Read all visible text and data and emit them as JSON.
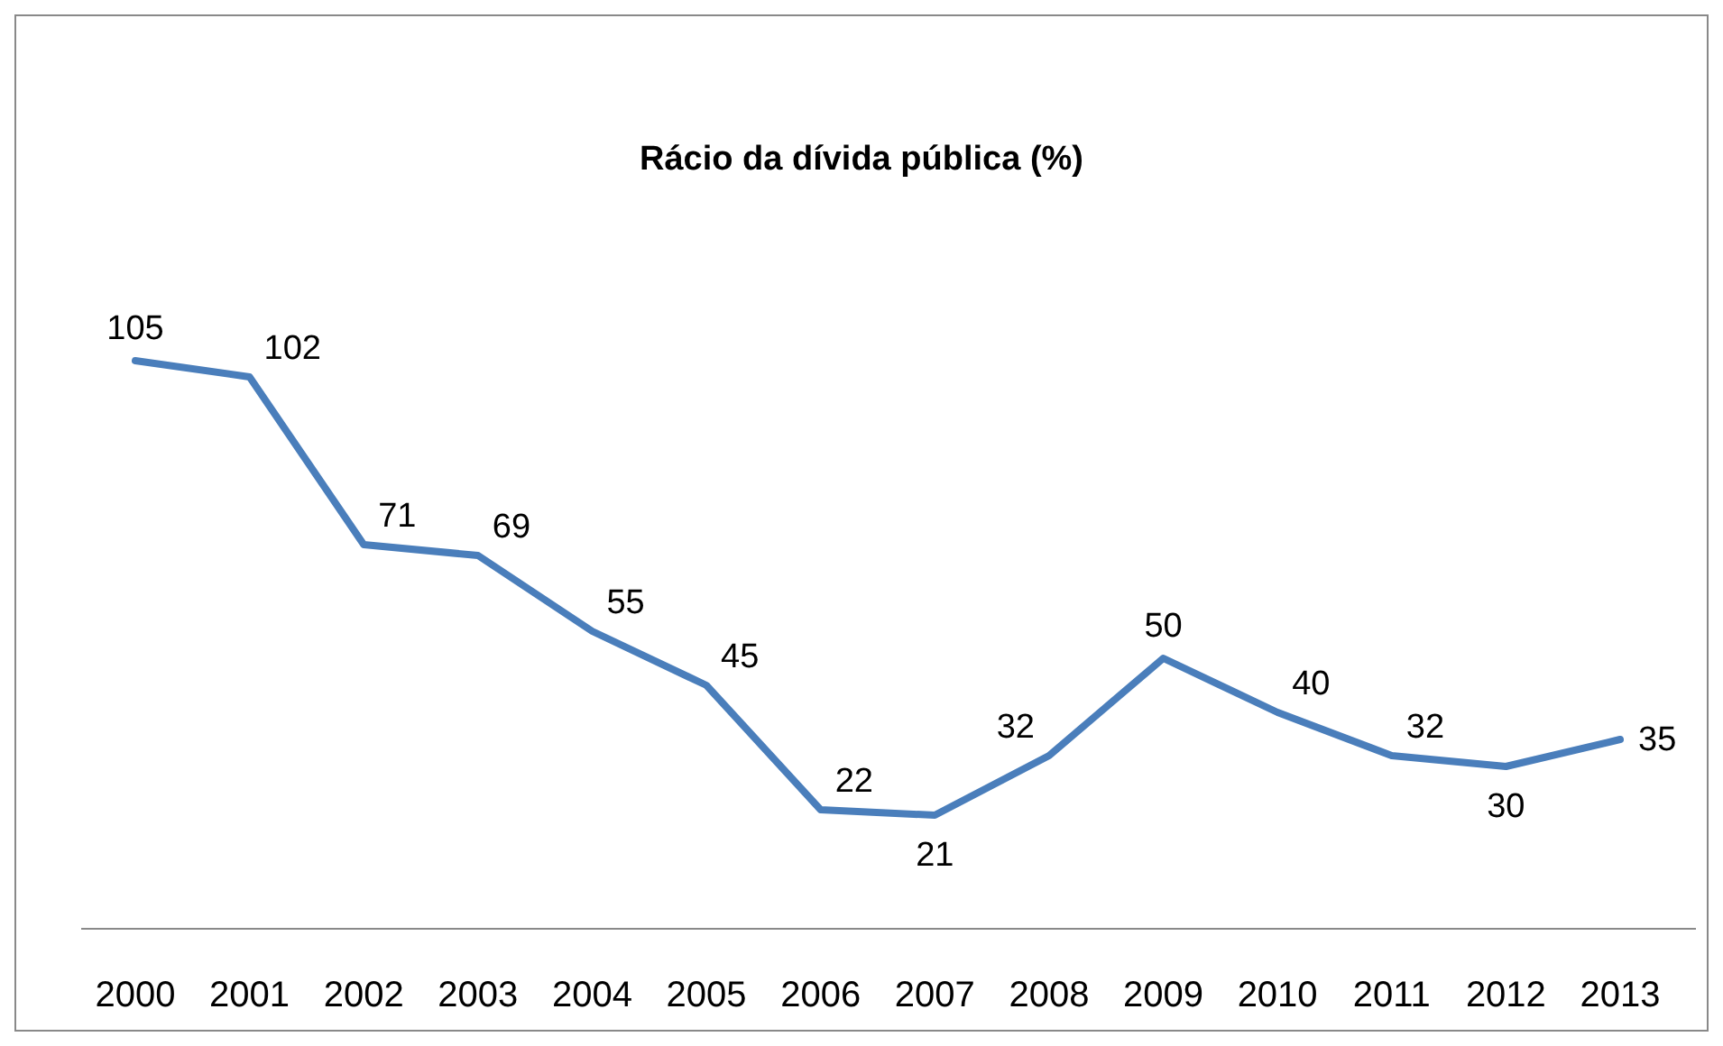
{
  "chart_data": {
    "type": "line",
    "title": "Rácio da dívida pública (%)",
    "categories": [
      "2000",
      "2001",
      "2002",
      "2003",
      "2004",
      "2005",
      "2006",
      "2007",
      "2008",
      "2009",
      "2010",
      "2011",
      "2012",
      "2013"
    ],
    "series": [
      {
        "color": "#4a7ebb",
        "values": [
          105,
          102,
          71,
          69,
          55,
          45,
          22,
          21,
          32,
          50,
          40,
          32,
          30,
          35
        ]
      }
    ],
    "data_labels": true,
    "marker": "none",
    "line_style": "solid"
  }
}
